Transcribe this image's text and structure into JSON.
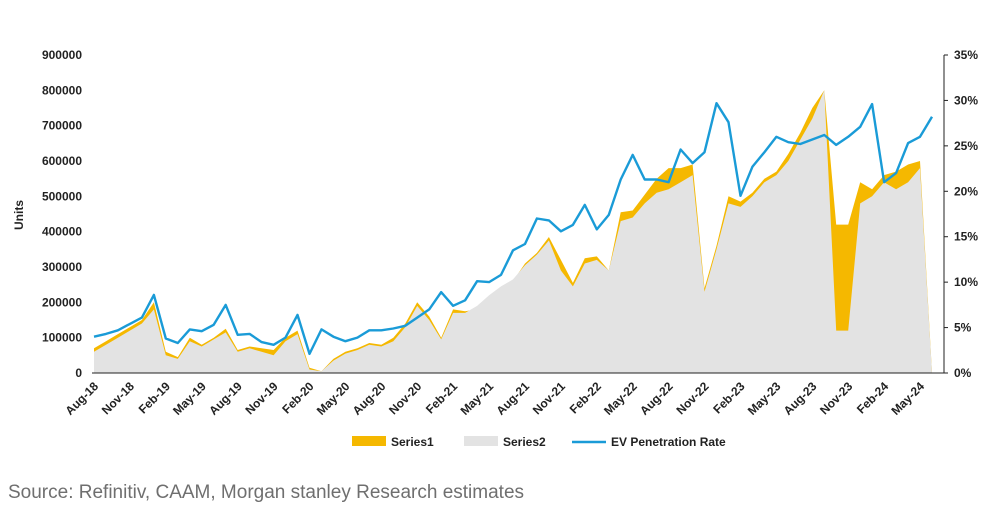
{
  "chart_data": {
    "type": "area",
    "ylabel": "Units",
    "y_left_lim": [
      0,
      900000
    ],
    "y_left_ticks": [
      "0",
      "100000",
      "200000",
      "300000",
      "400000",
      "500000",
      "600000",
      "700000",
      "800000",
      "900000"
    ],
    "y_right_lim": [
      0,
      35
    ],
    "y_right_ticks": [
      "0%",
      "5%",
      "10%",
      "15%",
      "20%",
      "25%",
      "30%",
      "35%"
    ],
    "x_tick_labels": [
      "Aug-18",
      "Nov-18",
      "Feb-19",
      "May-19",
      "Aug-19",
      "Nov-19",
      "Feb-20",
      "May-20",
      "Aug-20",
      "Nov-20",
      "Feb-21",
      "May-21",
      "Aug-21",
      "Nov-21",
      "Feb-22",
      "May-22",
      "Aug-22",
      "Nov-22",
      "Feb-23",
      "May-23",
      "Aug-23",
      "Nov-23",
      "Feb-24",
      "May-24"
    ],
    "grid": false,
    "legend_position": "bottom",
    "x": [
      "Aug-18",
      "Sep-18",
      "Oct-18",
      "Nov-18",
      "Dec-18",
      "Jan-19",
      "Feb-19",
      "Mar-19",
      "Apr-19",
      "May-19",
      "Jun-19",
      "Jul-19",
      "Aug-19",
      "Sep-19",
      "Oct-19",
      "Nov-19",
      "Dec-19",
      "Jan-20",
      "Feb-20",
      "Mar-20",
      "Apr-20",
      "May-20",
      "Jun-20",
      "Jul-20",
      "Aug-20",
      "Sep-20",
      "Oct-20",
      "Nov-20",
      "Dec-20",
      "Jan-21",
      "Feb-21",
      "Mar-21",
      "Apr-21",
      "May-21",
      "Jun-21",
      "Jul-21",
      "Aug-21",
      "Sep-21",
      "Oct-21",
      "Nov-21",
      "Dec-21",
      "Jan-22",
      "Feb-22",
      "Mar-22",
      "Apr-22",
      "May-22",
      "Jun-22",
      "Jul-22",
      "Aug-22",
      "Sep-22",
      "Oct-22",
      "Nov-22",
      "Dec-22",
      "Jan-23",
      "Feb-23",
      "Mar-23",
      "Apr-23",
      "May-23",
      "Jun-23",
      "Jul-23",
      "Aug-23",
      "Sep-23",
      "Oct-23",
      "Nov-23",
      "Dec-23",
      "Jan-24",
      "Feb-24",
      "Mar-24",
      "Apr-24",
      "May-24",
      "Jun-24"
    ],
    "series": [
      {
        "name": "Series1",
        "chart": "area",
        "axis": "left",
        "color": "#F5B800",
        "values": [
          70000,
          90000,
          110000,
          130000,
          150000,
          200000,
          60000,
          45000,
          100000,
          80000,
          100000,
          125000,
          65000,
          75000,
          70000,
          65000,
          100000,
          120000,
          15000,
          5000,
          40000,
          60000,
          70000,
          85000,
          80000,
          100000,
          140000,
          200000,
          160000,
          100000,
          180000,
          175000,
          180000,
          210000,
          240000,
          260000,
          310000,
          340000,
          385000,
          320000,
          255000,
          325000,
          330000,
          290000,
          455000,
          460000,
          505000,
          550000,
          580000,
          580000,
          590000,
          240000,
          360000,
          500000,
          485000,
          510000,
          550000,
          570000,
          620000,
          680000,
          750000,
          800000,
          420000,
          420000,
          540000,
          520000,
          560000,
          570000,
          590000,
          600000,
          0
        ]
      },
      {
        "name": "Series2",
        "chart": "area",
        "axis": "left",
        "color": "#E3E3E3",
        "values": [
          60000,
          80000,
          100000,
          120000,
          140000,
          180000,
          50000,
          40000,
          90000,
          75000,
          95000,
          115000,
          60000,
          70000,
          60000,
          50000,
          90000,
          110000,
          10000,
          5000,
          35000,
          55000,
          65000,
          80000,
          75000,
          90000,
          130000,
          190000,
          150000,
          95000,
          170000,
          170000,
          190000,
          220000,
          245000,
          265000,
          305000,
          335000,
          375000,
          290000,
          245000,
          310000,
          320000,
          290000,
          430000,
          440000,
          480000,
          510000,
          520000,
          540000,
          560000,
          230000,
          350000,
          480000,
          470000,
          500000,
          540000,
          560000,
          600000,
          660000,
          720000,
          800000,
          120000,
          120000,
          480000,
          500000,
          540000,
          520000,
          540000,
          580000,
          0
        ]
      },
      {
        "name": "EV Penetration Rate",
        "chart": "line",
        "axis": "right",
        "color": "#1A9BD7",
        "values": [
          4.0,
          4.3,
          4.7,
          5.4,
          6.1,
          8.6,
          3.8,
          3.3,
          4.8,
          4.6,
          5.3,
          7.5,
          4.2,
          4.3,
          3.4,
          3.1,
          3.9,
          6.4,
          2.1,
          4.8,
          4.0,
          3.5,
          3.9,
          4.7,
          4.7,
          4.9,
          5.2,
          6.1,
          7.0,
          8.9,
          7.4,
          8.0,
          10.1,
          10.0,
          10.8,
          13.5,
          14.2,
          17.0,
          16.8,
          15.6,
          16.3,
          18.5,
          15.8,
          17.4,
          21.3,
          24.0,
          21.3,
          21.3,
          21.0,
          24.6,
          23.1,
          24.3,
          29.7,
          27.6,
          19.5,
          22.7,
          24.3,
          26.0,
          25.4,
          25.2,
          25.7,
          26.2,
          25.1,
          26.0,
          27.1,
          29.6,
          21.0,
          22.0,
          25.3,
          26.0,
          28.2
        ]
      }
    ]
  },
  "legend": [
    {
      "label": "Series1",
      "color": "#F5B800",
      "kind": "box"
    },
    {
      "label": "Series2",
      "color": "#E3E3E3",
      "kind": "box"
    },
    {
      "label": "EV Penetration Rate",
      "color": "#1A9BD7",
      "kind": "line"
    }
  ],
  "source_text": "Source: Refinitiv, CAAM, Morgan stanley Research estimates"
}
